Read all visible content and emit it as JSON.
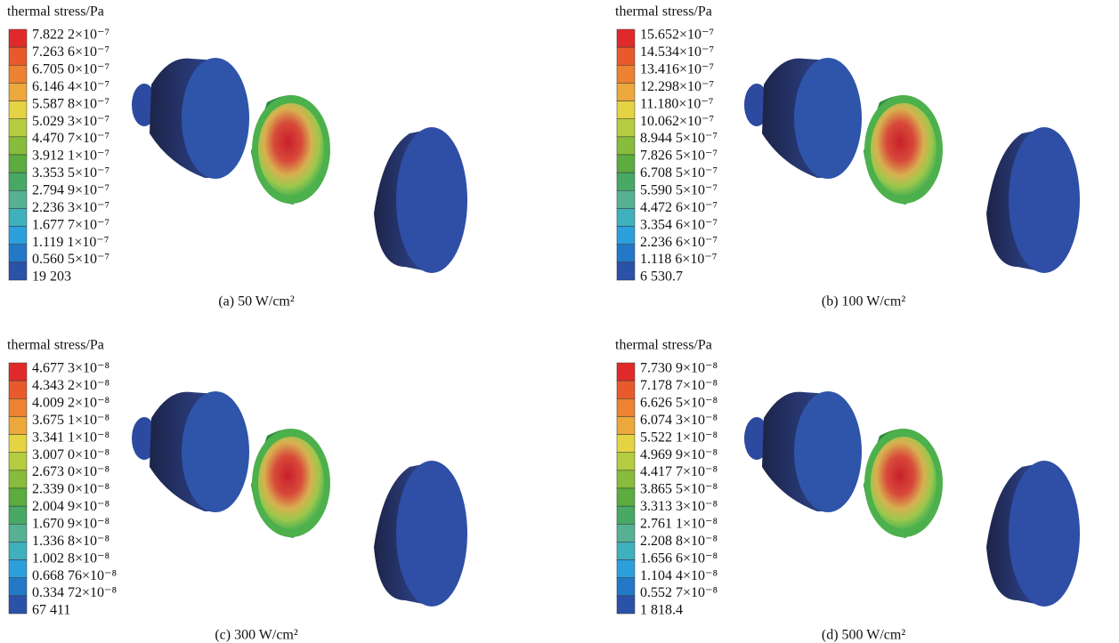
{
  "panels": [
    {
      "title": "thermal stress/Pa",
      "caption": "(a) 50 W/cm²",
      "legend": [
        "7.822 2×10⁻⁷",
        "7.263 6×10⁻⁷",
        "6.705 0×10⁻⁷",
        "6.146 4×10⁻⁷",
        "5.587 8×10⁻⁷",
        "5.029 3×10⁻⁷",
        "4.470 7×10⁻⁷",
        "3.912 1×10⁻⁷",
        "3.353 5×10⁻⁷",
        "2.794 9×10⁻⁷",
        "2.236 3×10⁻⁷",
        "1.677 7×10⁻⁷",
        "1.119 1×10⁻⁷",
        "0.560 5×10⁻⁷",
        "19 203"
      ]
    },
    {
      "title": "thermal stress/Pa",
      "caption": "(b) 100 W/cm²",
      "legend": [
        "15.652×10⁻⁷",
        "14.534×10⁻⁷",
        "13.416×10⁻⁷",
        "12.298×10⁻⁷",
        "11.180×10⁻⁷",
        "10.062×10⁻⁷",
        "8.944 5×10⁻⁷",
        "7.826 5×10⁻⁷",
        "6.708 5×10⁻⁷",
        "5.590 5×10⁻⁷",
        "4.472 6×10⁻⁷",
        "3.354 6×10⁻⁷",
        "2.236 6×10⁻⁷",
        "1.118 6×10⁻⁷",
        "6 530.7"
      ]
    },
    {
      "title": "thermal stress/Pa",
      "caption": "(c) 300 W/cm²",
      "legend": [
        "4.677 3×10⁻⁸",
        "4.343 2×10⁻⁸",
        "4.009 2×10⁻⁸",
        "3.675 1×10⁻⁸",
        "3.341 1×10⁻⁸",
        "3.007 0×10⁻⁸",
        "2.673 0×10⁻⁸",
        "2.339 0×10⁻⁸",
        "2.004 9×10⁻⁸",
        "1.670 9×10⁻⁸",
        "1.336 8×10⁻⁸",
        "1.002 8×10⁻⁸",
        "0.668 76×10⁻⁸",
        "0.334 72×10⁻⁸",
        "67 411"
      ]
    },
    {
      "title": "thermal stress/Pa",
      "caption": "(d) 500 W/cm²",
      "legend": [
        "7.730 9×10⁻⁸",
        "7.178 7×10⁻⁸",
        "6.626 5×10⁻⁸",
        "6.074 3×10⁻⁸",
        "5.522 1×10⁻⁸",
        "4.969 9×10⁻⁸",
        "4.417 7×10⁻⁸",
        "3.865 5×10⁻⁸",
        "3.313 3×10⁻⁸",
        "2.761 1×10⁻⁸",
        "2.208 8×10⁻⁸",
        "1.656 6×10⁻⁸",
        "1.104 4×10⁻⁸",
        "0.552 7×10⁻⁸",
        "1 818.4"
      ]
    }
  ]
}
